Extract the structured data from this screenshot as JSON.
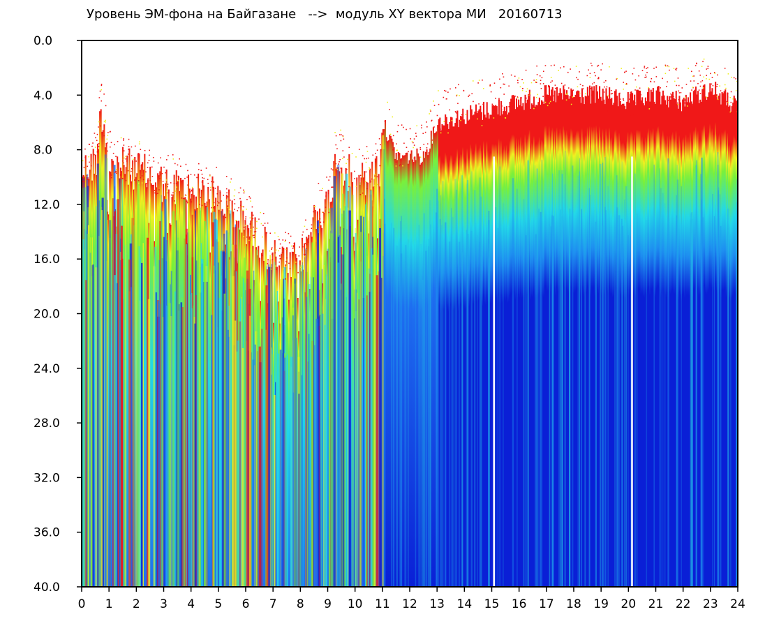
{
  "chart_data": {
    "type": "heatmap",
    "title": "Уровень ЭМ-фона на Байгазане   -->  модуль XY вектора МИ   20160713",
    "xlabel": "",
    "ylabel": "",
    "x_ticks": [
      "0",
      "1",
      "2",
      "3",
      "4",
      "5",
      "6",
      "7",
      "8",
      "9",
      "10",
      "11",
      "12",
      "13",
      "14",
      "15",
      "16",
      "17",
      "18",
      "19",
      "20",
      "21",
      "22",
      "23",
      "24"
    ],
    "y_ticks": [
      "0.0",
      "4.0",
      "8.0",
      "12.0",
      "16.0",
      "20.0",
      "24.0",
      "28.0",
      "32.0",
      "36.0",
      "40.0"
    ],
    "xlim": [
      0,
      24
    ],
    "ylim": [
      0,
      40
    ],
    "y_inverted": true,
    "colors": {
      "low": "#0a1fd6",
      "mid_low": "#1e6ff0",
      "mid": "#22d8e8",
      "mid_high": "#7af03a",
      "high_yellow": "#f0f020",
      "high": "#f01818"
    },
    "regions": [
      {
        "x_start": 0.0,
        "x_end": 11.0,
        "top_level": 9.5,
        "dominant": "mixed green/yellow/red"
      },
      {
        "x_start": 11.0,
        "x_end": 13.0,
        "top_level": 8.5,
        "dominant": "blue with red top"
      },
      {
        "x_start": 13.0,
        "x_end": 24.0,
        "top_level": 5.0,
        "dominant": "blue with red/green top band"
      }
    ],
    "upper_envelope": [
      [
        0.0,
        9.5
      ],
      [
        0.5,
        9.0
      ],
      [
        0.7,
        5.0
      ],
      [
        1.0,
        9.0
      ],
      [
        2.0,
        9.5
      ],
      [
        3.0,
        10.5
      ],
      [
        4.0,
        11.0
      ],
      [
        5.0,
        11.5
      ],
      [
        6.0,
        13.5
      ],
      [
        6.5,
        14.5
      ],
      [
        7.0,
        16.0
      ],
      [
        7.5,
        16.5
      ],
      [
        8.0,
        16.0
      ],
      [
        8.5,
        13.0
      ],
      [
        9.0,
        12.0
      ],
      [
        9.3,
        8.5
      ],
      [
        10.0,
        10.5
      ],
      [
        10.9,
        9.5
      ],
      [
        11.0,
        6.0
      ],
      [
        11.5,
        8.5
      ],
      [
        12.0,
        8.5
      ],
      [
        12.5,
        8.5
      ],
      [
        13.0,
        6.0
      ],
      [
        14.0,
        5.5
      ],
      [
        15.0,
        5.0
      ],
      [
        16.0,
        4.5
      ],
      [
        17.0,
        4.0
      ],
      [
        18.0,
        4.0
      ],
      [
        19.0,
        4.0
      ],
      [
        20.0,
        4.5
      ],
      [
        21.0,
        4.0
      ],
      [
        22.0,
        4.5
      ],
      [
        23.0,
        3.5
      ],
      [
        24.0,
        5.0
      ]
    ]
  }
}
